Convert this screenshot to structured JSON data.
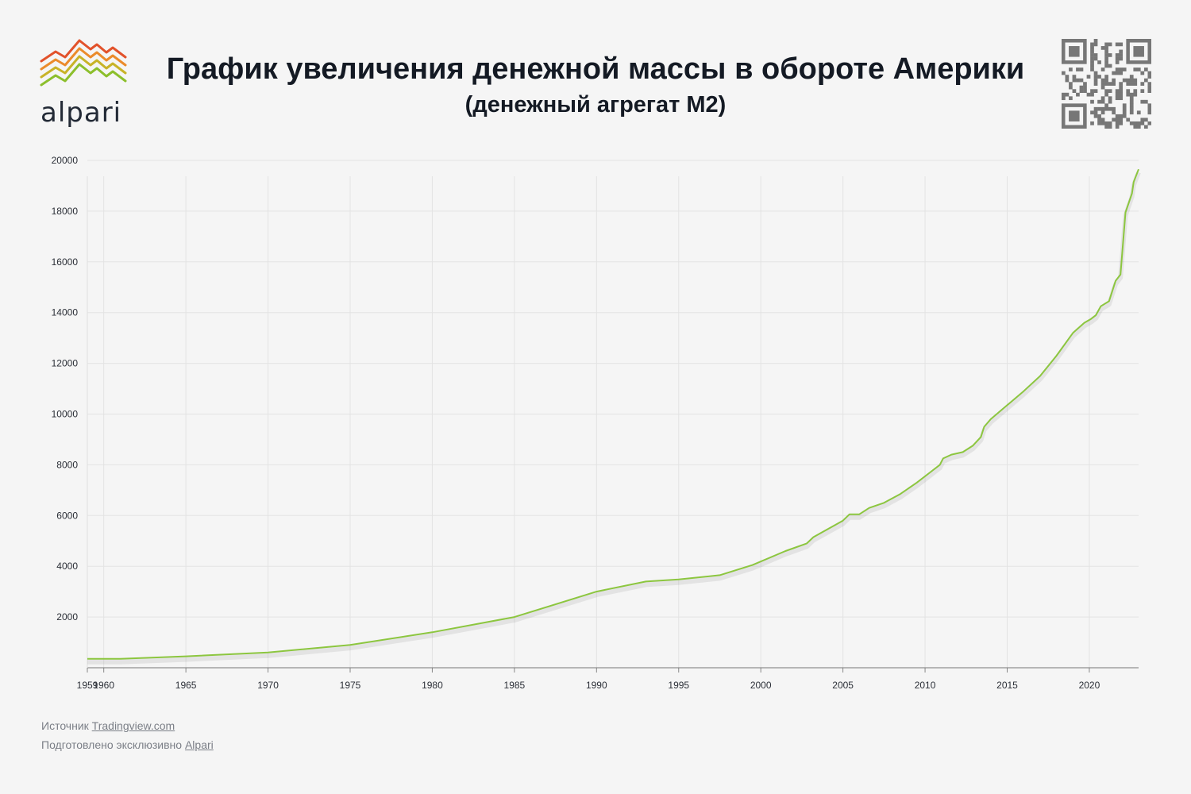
{
  "header": {
    "title": "График увеличения денежной массы в обороте Америки",
    "subtitle": "(денежный агрегат M2)"
  },
  "brand": {
    "logo_text": "alpari",
    "logo_colors": [
      "#e2522b",
      "#eb8b2b",
      "#c8b328",
      "#8cbf2c"
    ],
    "icon": "alpari-logo-icon"
  },
  "qr": {
    "icon": "qr-code-icon"
  },
  "footer": {
    "source_prefix": "Источник",
    "source_link": "Tradingview.com",
    "prepared_prefix": "Подготовлено эксклюзивно",
    "prepared_link": "Alpari"
  },
  "colors": {
    "line": "#8cc63f",
    "grid": "#e3e3e3",
    "text": "#141a24"
  },
  "chart_data": {
    "type": "line",
    "title": "",
    "xlabel": "",
    "ylabel": "",
    "xlim": [
      1959,
      2023
    ],
    "ylim": [
      0,
      20000
    ],
    "grid": true,
    "legend": "none",
    "x_ticks": [
      1959,
      1960,
      1965,
      1970,
      1975,
      1980,
      1985,
      1990,
      1995,
      2000,
      2005,
      2010,
      2015,
      2020
    ],
    "y_ticks": [
      2000,
      4000,
      6000,
      8000,
      10000,
      12000,
      14000,
      16000,
      18000,
      20000
    ],
    "series": [
      {
        "color": "#8cc63f",
        "x": [
          1959,
          1961,
          1965,
          1970,
          1975,
          1980,
          1985,
          1990,
          1993,
          1995,
          1997.5,
          1999.5,
          2001.5,
          2002.8,
          2003.2,
          2005,
          2005.4,
          2006,
          2006.6,
          2007.5,
          2008.5,
          2009.5,
          2010.3,
          2010.9,
          2011.1,
          2011.6,
          2012.3,
          2012.9,
          2013.4,
          2013.6,
          2014,
          2015,
          2016,
          2017,
          2018,
          2019,
          2019.7,
          2020.1,
          2020.4,
          2020.7,
          2021.2,
          2021.6,
          2021.9,
          2022.2,
          2022.6,
          2022.7,
          2023
        ],
        "y": [
          350,
          350,
          450,
          600,
          900,
          1400,
          2000,
          3000,
          3400,
          3480,
          3650,
          4050,
          4600,
          4900,
          5150,
          5800,
          6050,
          6050,
          6300,
          6500,
          6850,
          7300,
          7700,
          8000,
          8250,
          8400,
          8500,
          8750,
          9100,
          9500,
          9800,
          10350,
          10900,
          11500,
          12300,
          13200,
          13600,
          13750,
          13900,
          14250,
          14450,
          15250,
          15500,
          17950,
          18700,
          19150,
          19650
        ]
      }
    ]
  }
}
